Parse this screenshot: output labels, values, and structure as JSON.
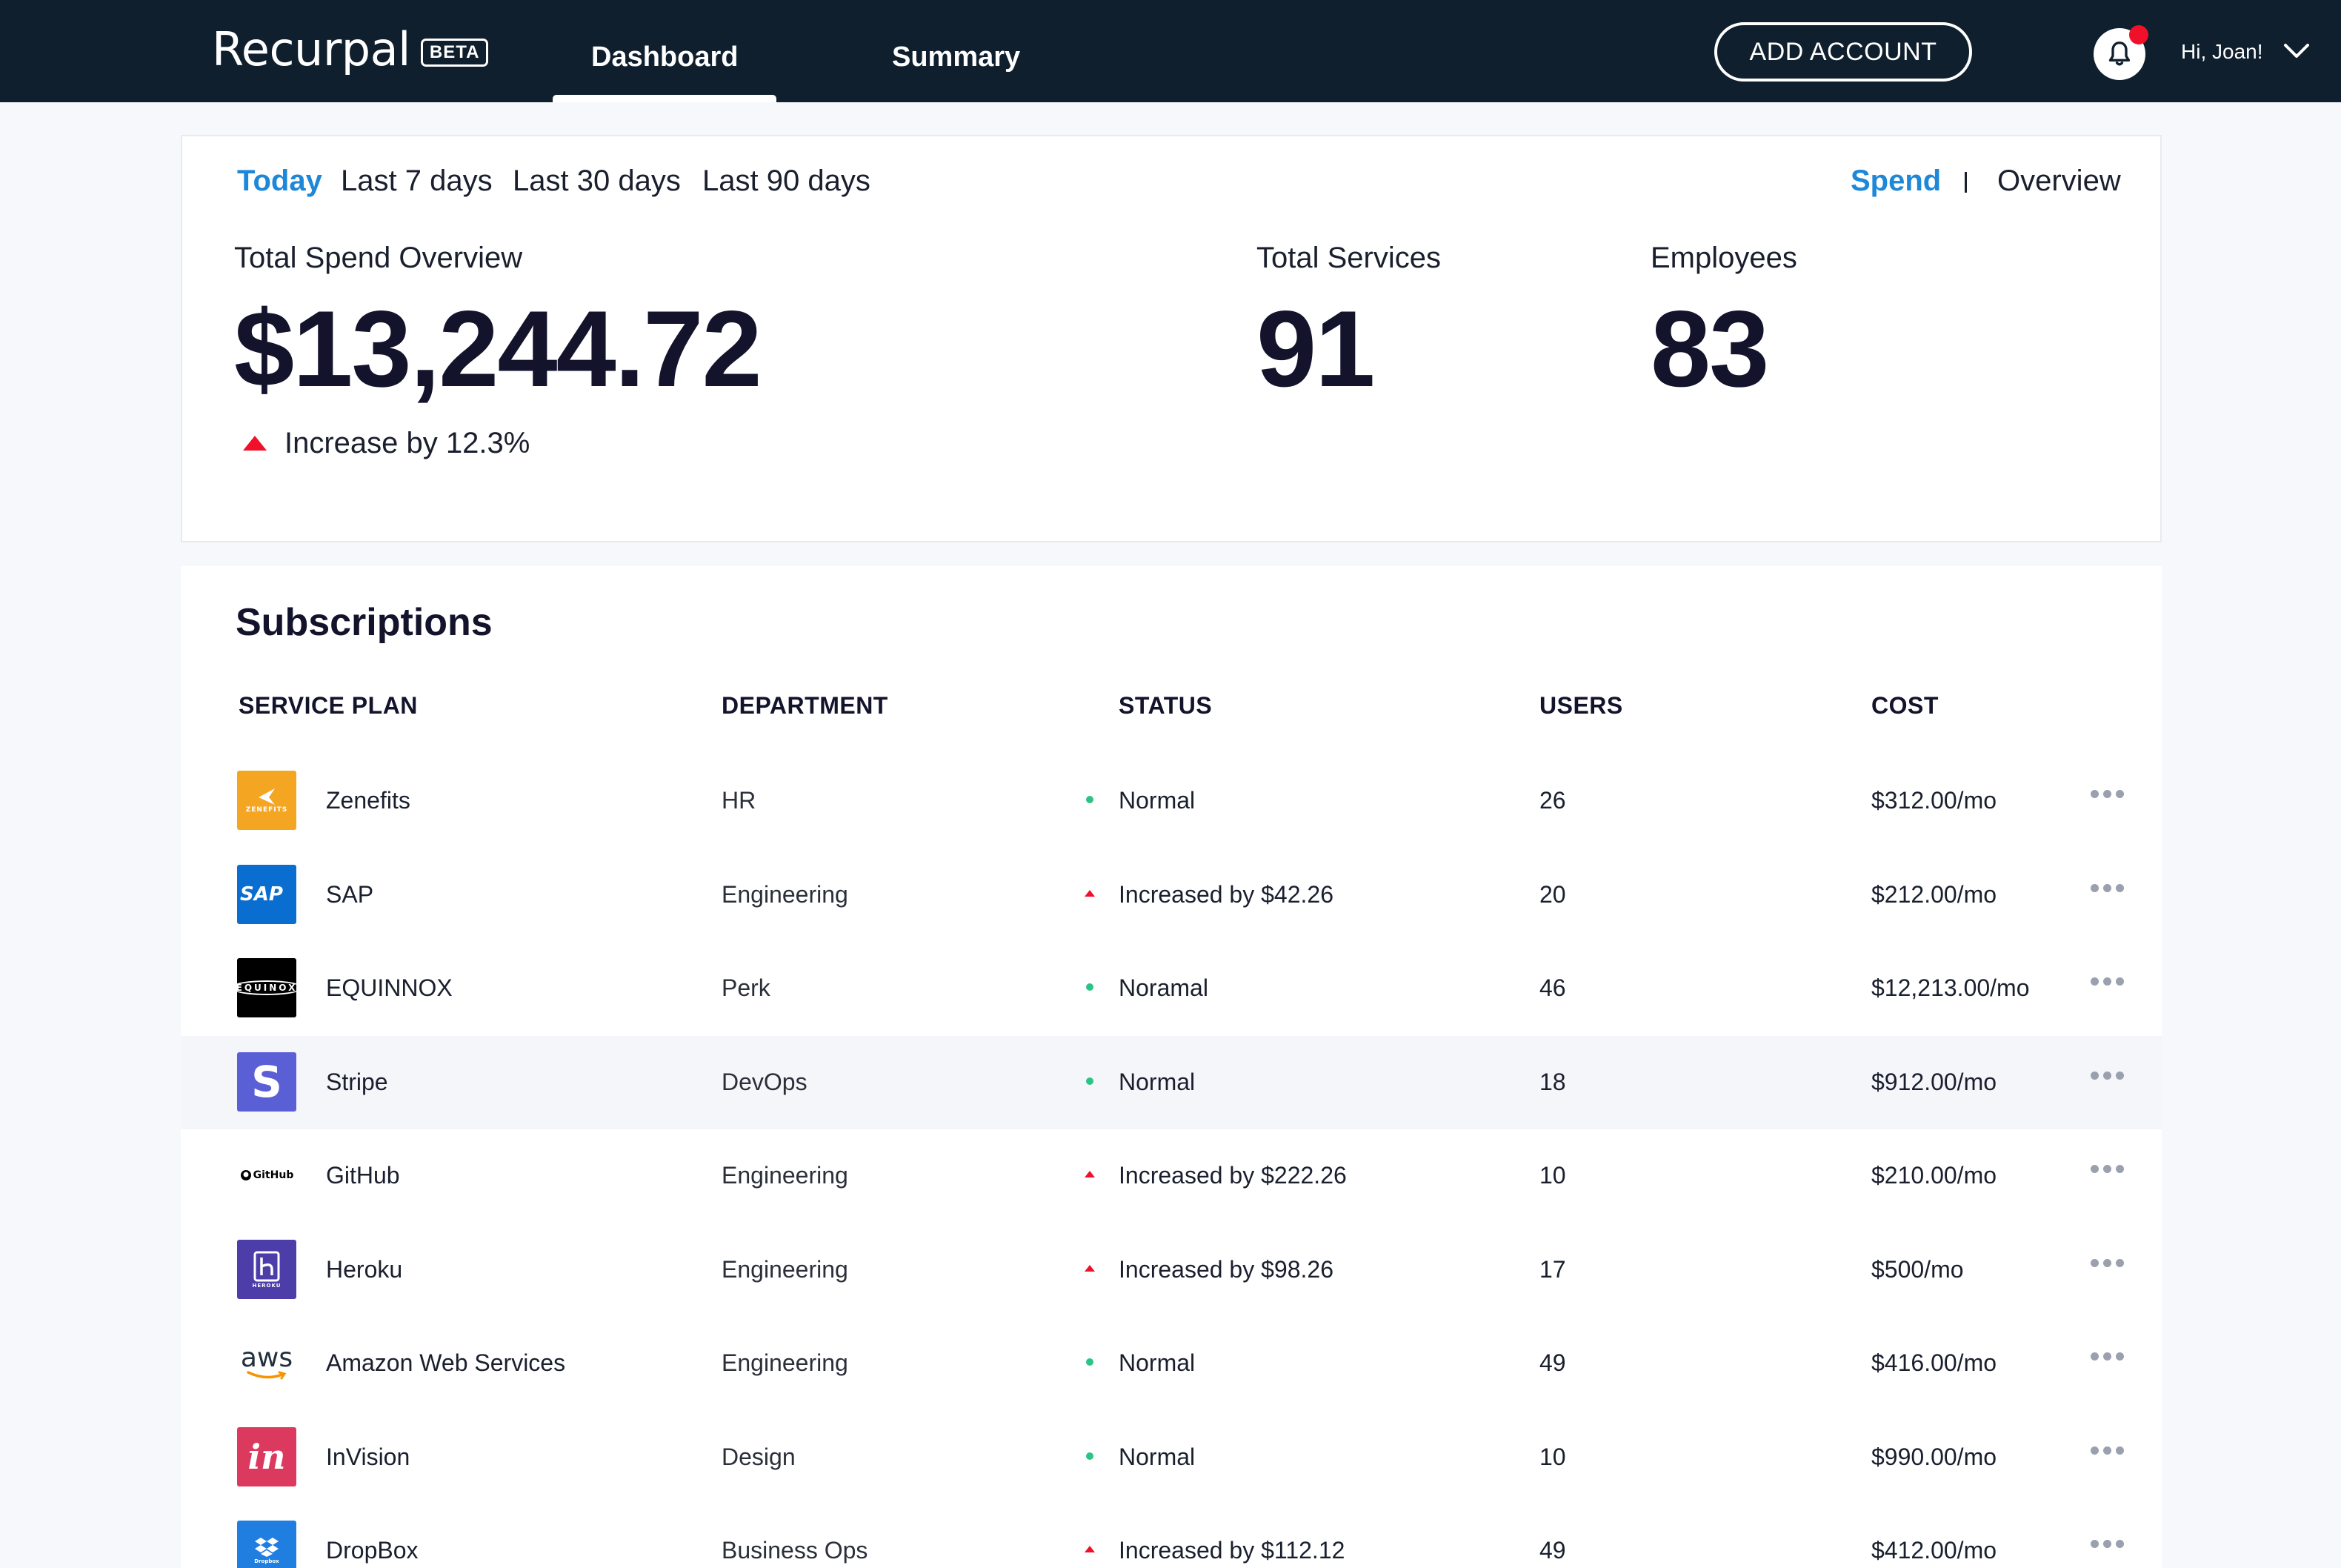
{
  "header": {
    "brand": "Recurpal",
    "badge": "BETA",
    "nav": [
      "Dashboard",
      "Summary"
    ],
    "active_nav": "Dashboard",
    "add_account": "ADD ACCOUNT",
    "greeting": "Hi, Joan!",
    "notification_icon": "bell-icon",
    "has_notification": true
  },
  "overview": {
    "ranges": [
      "Today",
      "Last 7 days",
      "Last 30 days",
      "Last 90 days"
    ],
    "active_range": "Today",
    "views": [
      "Spend",
      "Overview"
    ],
    "active_view": "Spend",
    "total_spend_label": "Total Spend Overview",
    "total_spend_value": "$13,244.72",
    "trend_text": "Increase by 12.3%",
    "total_services_label": "Total Services",
    "total_services_value": "91",
    "employees_label": "Employees",
    "employees_value": "83"
  },
  "subscriptions": {
    "title": "Subscriptions",
    "columns": [
      "SERVICE PLAN",
      "DEPARTMENT",
      "STATUS",
      "USERS",
      "COST"
    ],
    "rows": [
      {
        "name": "Zenefits",
        "dept": "HR",
        "status": "Normal",
        "trend": "normal",
        "users": "26",
        "cost": "$312.00/mo",
        "logo_text": "ZENEFITS",
        "logo_color": "#f4a623"
      },
      {
        "name": "SAP",
        "dept": "Engineering",
        "status": "Increased by $42.26",
        "trend": "up",
        "users": "20",
        "cost": "$212.00/mo",
        "logo_text": "SAP",
        "logo_color": "#0a6ed1"
      },
      {
        "name": "EQUINNOX",
        "dept": "Perk",
        "status": "Noramal",
        "trend": "normal",
        "users": "46",
        "cost": "$12,213.00/mo",
        "logo_text": "EQUINOX",
        "logo_color": "#000000"
      },
      {
        "name": "Stripe",
        "dept": "DevOps",
        "status": "Normal",
        "trend": "normal",
        "users": "18",
        "cost": "$912.00/mo",
        "logo_text": "S",
        "logo_color": "#5b5fd6"
      },
      {
        "name": "GitHub",
        "dept": "Engineering",
        "status": "Increased by $222.26",
        "trend": "up",
        "users": "10",
        "cost": "$210.00/mo",
        "logo_text": "GitHub",
        "logo_color": "#ffffff"
      },
      {
        "name": "Heroku",
        "dept": "Engineering",
        "status": "Increased by $98.26",
        "trend": "up",
        "users": "17",
        "cost": "$500/mo",
        "logo_text": "HEROKU",
        "logo_color": "#4d3da8"
      },
      {
        "name": "Amazon Web Services",
        "dept": "Engineering",
        "status": "Normal",
        "trend": "normal",
        "users": "49",
        "cost": "$416.00/mo",
        "logo_text": "aws",
        "logo_color": "#ffffff"
      },
      {
        "name": "InVision",
        "dept": "Design",
        "status": "Normal",
        "trend": "normal",
        "users": "10",
        "cost": "$990.00/mo",
        "logo_text": "in",
        "logo_color": "#dc395f"
      },
      {
        "name": "DropBox",
        "dept": "Business Ops",
        "status": "Increased by $112.12",
        "trend": "up",
        "users": "49",
        "cost": "$412.00/mo",
        "logo_text": "Dropbox",
        "logo_color": "#1f7ee0"
      }
    ],
    "highlighted_row": "Stripe"
  },
  "colors": {
    "topbar": "#0f1f2d",
    "accent": "#1d87d8",
    "up": "#f0102a",
    "normal": "#2bc487"
  }
}
